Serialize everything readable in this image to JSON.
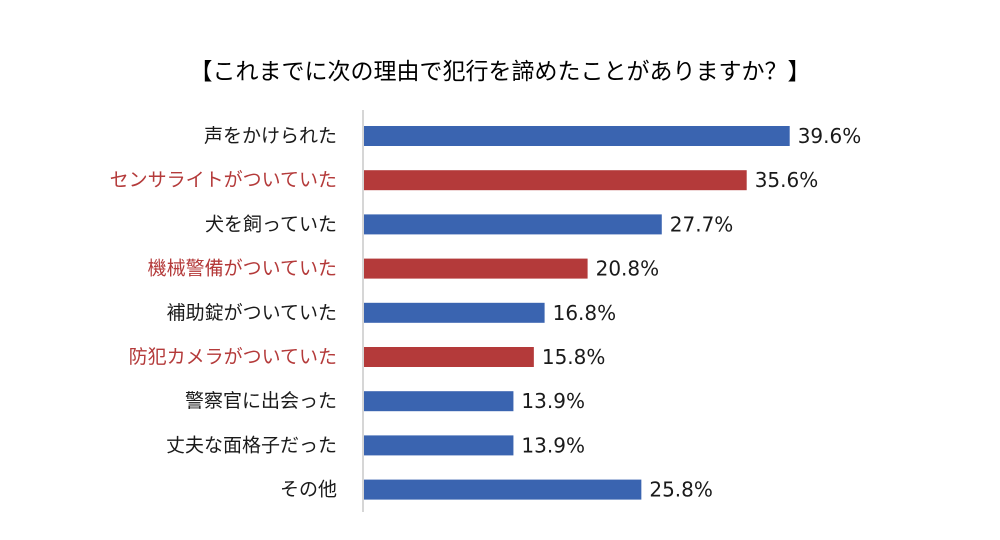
{
  "chart_data": {
    "type": "bar",
    "orientation": "horizontal",
    "title": "【これまでに次の理由で犯行を諦めたことがありますか？】",
    "xlabel": "",
    "ylabel": "",
    "unit": "%",
    "xlim": [
      0,
      45
    ],
    "grid": false,
    "legend": "none",
    "categories": [
      "声をかけられた",
      "センサライトがついていた",
      "犬を飼っていた",
      "機械警備がついていた",
      "補助錠がついていた",
      "防犯カメラがついていた",
      "警察官に出会った",
      "丈夫な面格子だった",
      "その他"
    ],
    "values": [
      39.6,
      35.6,
      27.7,
      20.8,
      16.8,
      15.8,
      13.9,
      13.9,
      25.8
    ],
    "value_labels": [
      "39.6%",
      "35.6%",
      "27.7%",
      "20.8%",
      "16.8%",
      "15.8%",
      "13.9%",
      "13.9%",
      "25.8%"
    ],
    "highlight": [
      false,
      true,
      false,
      true,
      false,
      true,
      false,
      false,
      false
    ]
  },
  "colors": {
    "bar_default": "#3a64b0",
    "bar_highlight": "#b43a3a",
    "label_default": "#1a1a1a",
    "label_highlight": "#b43a3a",
    "axis": "#c8c8c8",
    "value_text": "#1a1a1a"
  }
}
